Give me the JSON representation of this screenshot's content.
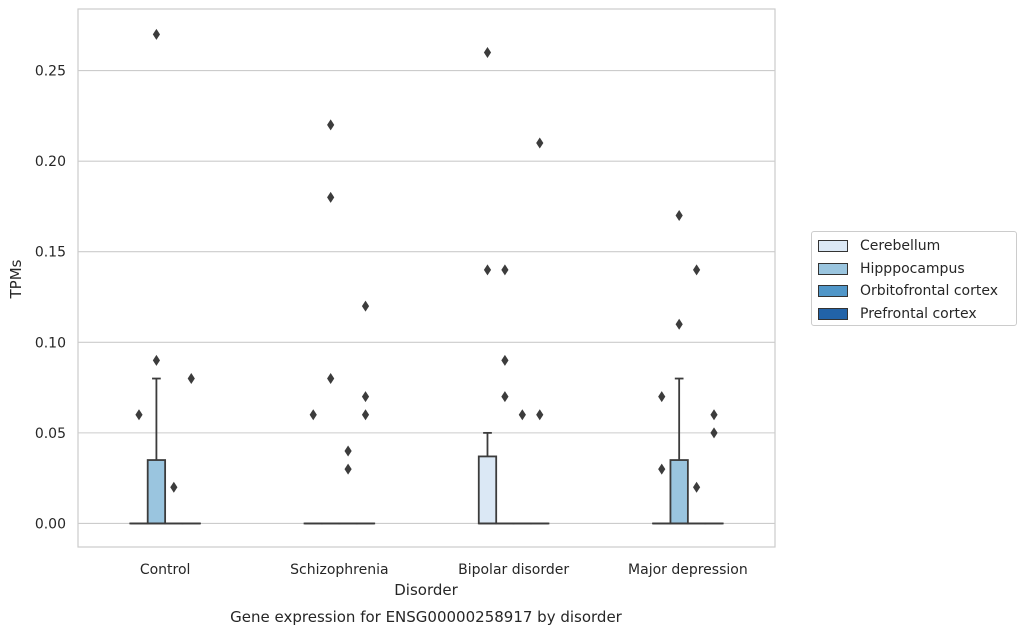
{
  "chart_data": {
    "type": "box",
    "title": "Gene expression for ENSG00000258917 by disorder",
    "xlabel": "Disorder",
    "ylabel": "TPMs",
    "ylim": [
      -0.013,
      0.284
    ],
    "yticks": [
      "0.00",
      "0.05",
      "0.10",
      "0.15",
      "0.20",
      "0.25"
    ],
    "grid": true,
    "legend_position": "right",
    "categories": [
      "Control",
      "Schizophrenia",
      "Bipolar disorder",
      "Major depression"
    ],
    "series": [
      {
        "name": "Cerebellum",
        "color": "#dbe8f5",
        "boxes": [
          {
            "min": 0,
            "q1": 0,
            "median": 0,
            "q3": 0,
            "max": 0,
            "outliers": [
              0.06
            ]
          },
          {
            "min": 0,
            "q1": 0,
            "median": 0,
            "q3": 0,
            "max": 0,
            "outliers": [
              0.06
            ]
          },
          {
            "min": 0,
            "q1": 0,
            "median": 0,
            "q3": 0.037,
            "max": 0.05,
            "outliers": [
              0.14,
              0.26
            ]
          },
          {
            "min": 0,
            "q1": 0,
            "median": 0,
            "q3": 0,
            "max": 0,
            "outliers": [
              0.07,
              0.03
            ]
          }
        ]
      },
      {
        "name": "Hipppocampus",
        "color": "#9ac5df",
        "boxes": [
          {
            "min": 0,
            "q1": 0,
            "median": 0,
            "q3": 0.035,
            "max": 0.08,
            "outliers": [
              0.09,
              0.27
            ]
          },
          {
            "min": 0,
            "q1": 0,
            "median": 0,
            "q3": 0,
            "max": 0,
            "outliers": [
              0.08,
              0.18,
              0.22
            ]
          },
          {
            "min": 0,
            "q1": 0,
            "median": 0,
            "q3": 0,
            "max": 0,
            "outliers": [
              0.07,
              0.09,
              0.14
            ]
          },
          {
            "min": 0,
            "q1": 0,
            "median": 0,
            "q3": 0.035,
            "max": 0.08,
            "outliers": [
              0.11,
              0.17
            ]
          }
        ]
      },
      {
        "name": "Orbitofrontal cortex",
        "color": "#5096c8",
        "boxes": [
          {
            "min": 0,
            "q1": 0,
            "median": 0,
            "q3": 0,
            "max": 0,
            "outliers": [
              0.02
            ]
          },
          {
            "min": 0,
            "q1": 0,
            "median": 0,
            "q3": 0,
            "max": 0,
            "outliers": [
              0.03,
              0.04
            ]
          },
          {
            "min": 0,
            "q1": 0,
            "median": 0,
            "q3": 0,
            "max": 0,
            "outliers": [
              0.06
            ]
          },
          {
            "min": 0,
            "q1": 0,
            "median": 0,
            "q3": 0,
            "max": 0,
            "outliers": [
              0.02,
              0.14
            ]
          }
        ]
      },
      {
        "name": "Prefrontal cortex",
        "color": "#2263a8",
        "boxes": [
          {
            "min": 0,
            "q1": 0,
            "median": 0,
            "q3": 0,
            "max": 0,
            "outliers": [
              0.08
            ]
          },
          {
            "min": 0,
            "q1": 0,
            "median": 0,
            "q3": 0,
            "max": 0,
            "outliers": [
              0.06,
              0.07,
              0.12
            ]
          },
          {
            "min": 0,
            "q1": 0,
            "median": 0,
            "q3": 0,
            "max": 0,
            "outliers": [
              0.06,
              0.21
            ]
          },
          {
            "min": 0,
            "q1": 0,
            "median": 0,
            "q3": 0,
            "max": 0,
            "outliers": [
              0.05,
              0.06
            ]
          }
        ]
      }
    ]
  }
}
